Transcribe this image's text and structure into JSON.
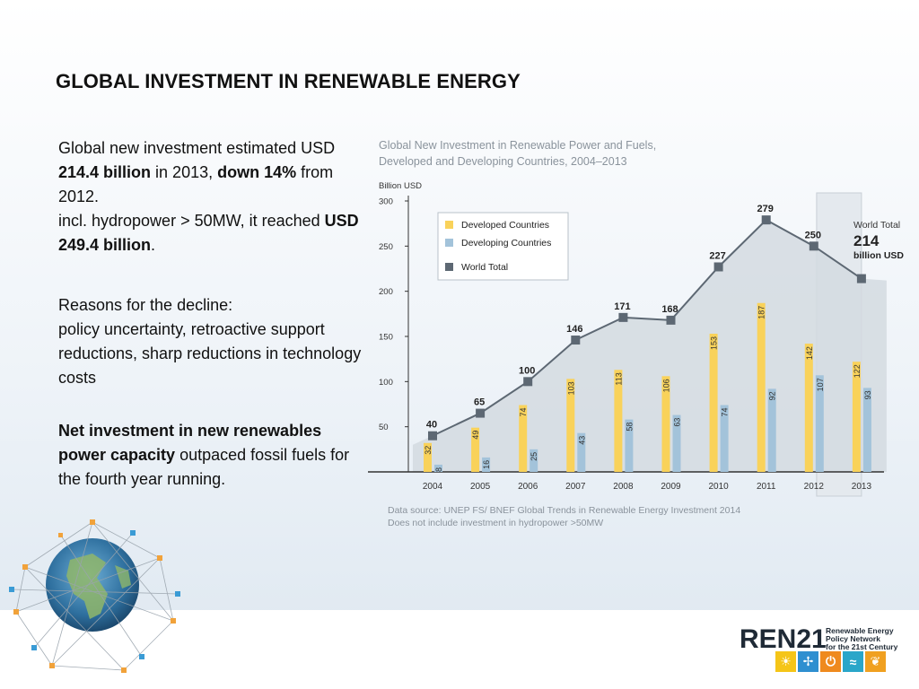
{
  "slide": {
    "title": "GLOBAL INVESTMENT IN RENEWABLE ENERGY",
    "p1_a": "Global new investment estimated USD ",
    "p1_b": "214.4 billion",
    "p1_c": " in 2013, ",
    "p1_d": "down 14%",
    "p1_e": " from 2012.",
    "p2_a": "incl. hydropower > 50MW, it reached ",
    "p2_b": "USD 249.4 billion",
    "p2_c": ".",
    "p3": "Reasons for the decline:",
    "p4": "policy uncertainty, retroactive support reductions, sharp reductions in technology costs",
    "p5_a": "Net investment in new renewables power capacity",
    "p5_b": " outpaced fossil fuels for the fourth year running."
  },
  "chart_title_line1": "Global New Investment in Renewable Power and Fuels,",
  "chart_title_line2": "Developed and Developing Countries, 2004–2013",
  "source_line1": "Data source: UNEP FS/ BNEF Global Trends in Renewable Energy Investment 2014",
  "source_line2": "Does not include investment in hydropower >50MW",
  "logo": {
    "name": "REN21",
    "tagline1": "Renewable Energy",
    "tagline2": "Policy Network",
    "tagline3": "for the 21st Century",
    "tile_colors": [
      "#f5c518",
      "#2f8fd0",
      "#ef8a1e",
      "#2aa6c9",
      "#f0a020"
    ]
  },
  "chart_data": {
    "type": "bar",
    "ylabel": "Billion USD",
    "ylim": [
      0,
      300
    ],
    "yticks": [
      50,
      100,
      150,
      200,
      250,
      300
    ],
    "categories": [
      "2004",
      "2005",
      "2006",
      "2007",
      "2008",
      "2009",
      "2010",
      "2011",
      "2012",
      "2013"
    ],
    "series": [
      {
        "name": "Developed Countries",
        "type": "bar",
        "color": "#f9d25a",
        "values": [
          32,
          49,
          74,
          103,
          113,
          106,
          153,
          187,
          142,
          122
        ]
      },
      {
        "name": "Developing Countries",
        "type": "bar",
        "color": "#a3c3da",
        "values": [
          8,
          16,
          25,
          43,
          58,
          63,
          74,
          92,
          107,
          93
        ]
      },
      {
        "name": "World Total",
        "type": "line",
        "color": "#5d6873",
        "values": [
          40,
          65,
          100,
          146,
          171,
          168,
          227,
          279,
          250,
          214
        ]
      }
    ],
    "highlight": {
      "category": "2013",
      "label_line1": "World Total",
      "label_line2": "214",
      "label_line3": "billion USD"
    },
    "legend_position": "top-left",
    "grid": false
  }
}
